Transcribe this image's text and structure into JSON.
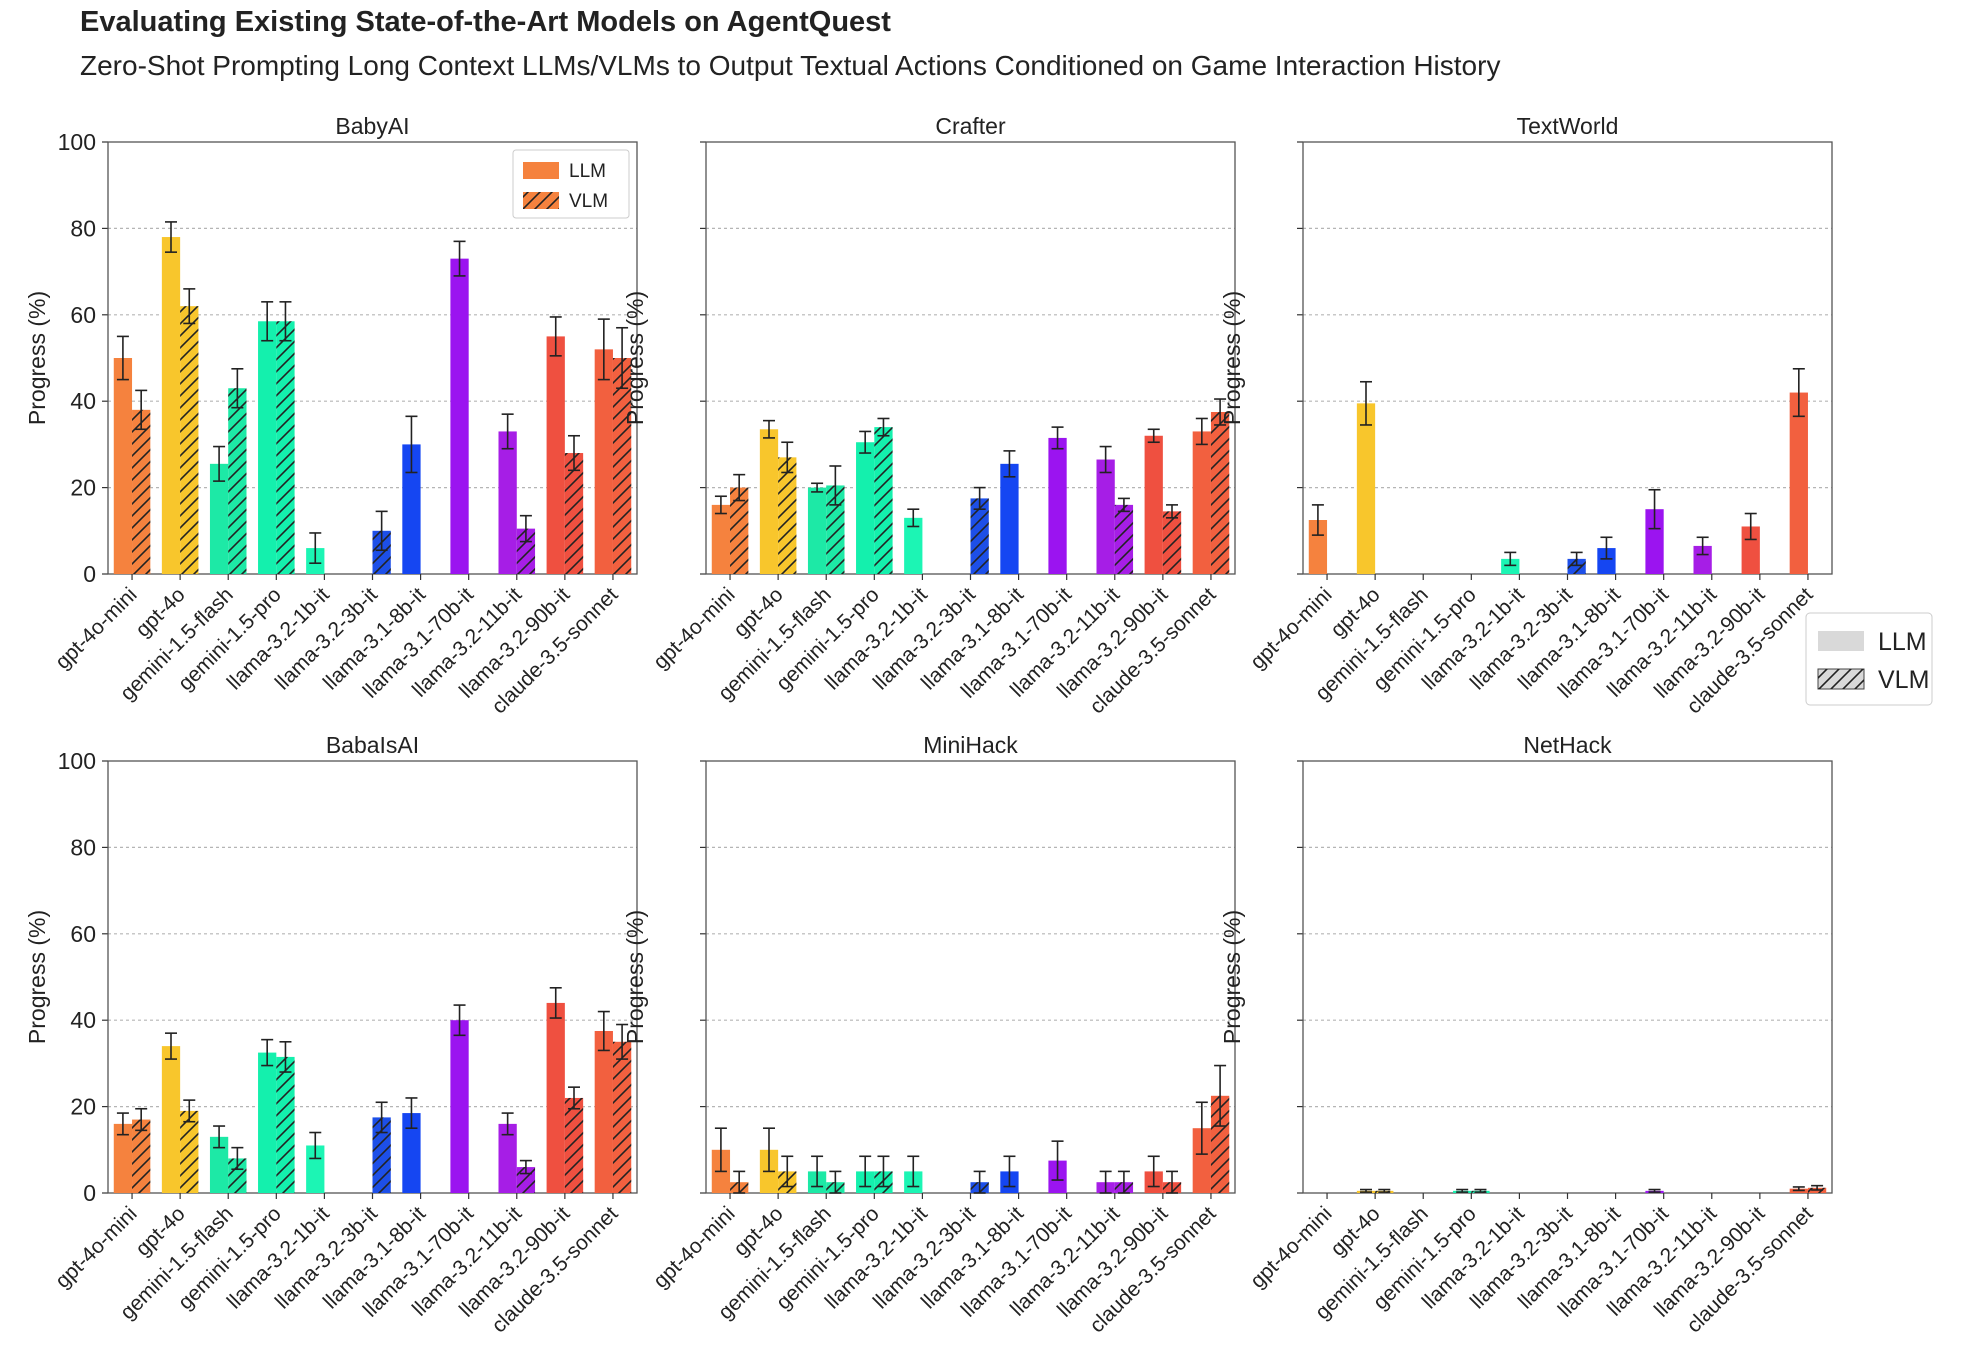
{
  "title": "Evaluating Existing State-of-the-Art Models on AgentQuest",
  "subtitle": "Zero-Shot Prompting Long Context LLMs/VLMs to Output Textual Actions Conditioned on Game Interaction History",
  "ylabel": "Progress (%)",
  "legend_inner": [
    "LLM",
    "VLM"
  ],
  "legend_outer": [
    "LLM",
    "VLM"
  ],
  "colors": {
    "gpt-4o-mini": "#f5823e",
    "gpt-4o": "#f8c62c",
    "gemini-1.5-flash": "#1de9a6",
    "gemini-1.5-pro": "#14f0ad",
    "llama-3.2-1b-it": "#1cf5b4",
    "llama-3.2-3b-it": "#1d4fe8",
    "llama-3.1-8b-it": "#1546f2",
    "llama-3.1-70b-it": "#9b14f0",
    "llama-3.2-11b-it": "#a61ee6",
    "llama-3.2-90b-it": "#ef5040",
    "claude-3.5-sonnet": "#f2603f",
    "legend_llm": "#f5823e",
    "legend_outer_fill": "#d9d9d9"
  },
  "chart_data": [
    {
      "title": "BabyAI",
      "type": "bar",
      "categories": [
        "gpt-4o-mini",
        "gpt-4o",
        "gemini-1.5-flash",
        "gemini-1.5-pro",
        "llama-3.2-1b-it",
        "llama-3.2-3b-it",
        "llama-3.1-8b-it",
        "llama-3.1-70b-it",
        "llama-3.2-11b-it",
        "llama-3.2-90b-it",
        "claude-3.5-sonnet"
      ],
      "ylim": [
        0,
        100
      ],
      "yticks": [
        0,
        20,
        40,
        60,
        80,
        100
      ],
      "ylabel": "Progress (%)",
      "series": [
        {
          "name": "LLM",
          "values": [
            50,
            78,
            25.5,
            58.5,
            6,
            null,
            30,
            73,
            33,
            55,
            52
          ],
          "errors": [
            5,
            3.5,
            4,
            4.5,
            3.5,
            null,
            6.5,
            4,
            4,
            4.5,
            7
          ]
        },
        {
          "name": "VLM",
          "values": [
            38,
            62,
            43,
            58.5,
            null,
            10,
            null,
            null,
            10.5,
            28,
            50
          ],
          "errors": [
            4.5,
            4,
            4.5,
            4.5,
            null,
            4.5,
            null,
            null,
            3,
            4,
            7
          ]
        }
      ]
    },
    {
      "title": "Crafter",
      "type": "bar",
      "categories": [
        "gpt-4o-mini",
        "gpt-4o",
        "gemini-1.5-flash",
        "gemini-1.5-pro",
        "llama-3.2-1b-it",
        "llama-3.2-3b-it",
        "llama-3.1-8b-it",
        "llama-3.1-70b-it",
        "llama-3.2-11b-it",
        "llama-3.2-90b-it",
        "claude-3.5-sonnet"
      ],
      "ylim": [
        0,
        100
      ],
      "yticks": [
        0,
        20,
        40,
        60,
        80,
        100
      ],
      "ylabel": "Progress (%)",
      "series": [
        {
          "name": "LLM",
          "values": [
            16,
            33.5,
            20,
            30.5,
            13,
            null,
            25.5,
            31.5,
            26.5,
            32,
            33
          ],
          "errors": [
            2,
            2,
            1,
            2.5,
            2,
            null,
            3,
            2.5,
            3,
            1.5,
            3
          ]
        },
        {
          "name": "VLM",
          "values": [
            20,
            27,
            20.5,
            34,
            null,
            17.5,
            null,
            null,
            16,
            14.5,
            37.5
          ],
          "errors": [
            3,
            3.5,
            4.5,
            2,
            null,
            2.5,
            null,
            null,
            1.5,
            1.5,
            3
          ]
        }
      ]
    },
    {
      "title": "TextWorld",
      "type": "bar",
      "categories": [
        "gpt-4o-mini",
        "gpt-4o",
        "gemini-1.5-flash",
        "gemini-1.5-pro",
        "llama-3.2-1b-it",
        "llama-3.2-3b-it",
        "llama-3.1-8b-it",
        "llama-3.1-70b-it",
        "llama-3.2-11b-it",
        "llama-3.2-90b-it",
        "claude-3.5-sonnet"
      ],
      "ylim": [
        0,
        100
      ],
      "yticks": [
        0,
        20,
        40,
        60,
        80,
        100
      ],
      "ylabel": "Progress (%)",
      "series": [
        {
          "name": "LLM",
          "values": [
            12.5,
            39.5,
            0,
            0,
            3.5,
            null,
            6,
            15,
            6.5,
            11,
            42
          ],
          "errors": [
            3.5,
            5,
            0,
            0,
            1.5,
            null,
            2.5,
            4.5,
            2,
            3,
            5.5
          ]
        },
        {
          "name": "VLM",
          "values": [
            0,
            0,
            0,
            0,
            null,
            3.5,
            null,
            null,
            0,
            0,
            0
          ],
          "errors": [
            0,
            0,
            0,
            0,
            null,
            1.5,
            null,
            null,
            0,
            0,
            0
          ]
        }
      ]
    },
    {
      "title": "BabaIsAI",
      "type": "bar",
      "categories": [
        "gpt-4o-mini",
        "gpt-4o",
        "gemini-1.5-flash",
        "gemini-1.5-pro",
        "llama-3.2-1b-it",
        "llama-3.2-3b-it",
        "llama-3.1-8b-it",
        "llama-3.1-70b-it",
        "llama-3.2-11b-it",
        "llama-3.2-90b-it",
        "claude-3.5-sonnet"
      ],
      "ylim": [
        0,
        100
      ],
      "yticks": [
        0,
        20,
        40,
        60,
        80,
        100
      ],
      "ylabel": "Progress (%)",
      "series": [
        {
          "name": "LLM",
          "values": [
            16,
            34,
            13,
            32.5,
            11,
            null,
            18.5,
            40,
            16,
            44,
            37.5
          ],
          "errors": [
            2.5,
            3,
            2.5,
            3,
            3,
            null,
            3.5,
            3.5,
            2.5,
            3.5,
            4.5
          ]
        },
        {
          "name": "VLM",
          "values": [
            17,
            19,
            8,
            31.5,
            null,
            17.5,
            null,
            null,
            6,
            22,
            35
          ],
          "errors": [
            2.5,
            2.5,
            2.5,
            3.5,
            null,
            3.5,
            null,
            null,
            1.5,
            2.5,
            4
          ]
        }
      ]
    },
    {
      "title": "MiniHack",
      "type": "bar",
      "categories": [
        "gpt-4o-mini",
        "gpt-4o",
        "gemini-1.5-flash",
        "gemini-1.5-pro",
        "llama-3.2-1b-it",
        "llama-3.2-3b-it",
        "llama-3.1-8b-it",
        "llama-3.1-70b-it",
        "llama-3.2-11b-it",
        "llama-3.2-90b-it",
        "claude-3.5-sonnet"
      ],
      "ylim": [
        0,
        100
      ],
      "yticks": [
        0,
        20,
        40,
        60,
        80,
        100
      ],
      "ylabel": "Progress (%)",
      "series": [
        {
          "name": "LLM",
          "values": [
            10,
            10,
            5,
            5,
            5,
            null,
            5,
            7.5,
            2.5,
            5,
            15
          ],
          "errors": [
            5,
            5,
            3.5,
            3.5,
            3.5,
            null,
            3.5,
            4.5,
            2.5,
            3.5,
            6
          ]
        },
        {
          "name": "VLM",
          "values": [
            2.5,
            5,
            2.5,
            5,
            null,
            2.5,
            null,
            null,
            2.5,
            2.5,
            22.5
          ],
          "errors": [
            2.5,
            3.5,
            2.5,
            3.5,
            null,
            2.5,
            null,
            null,
            2.5,
            2.5,
            7
          ]
        }
      ]
    },
    {
      "title": "NetHack",
      "type": "bar",
      "categories": [
        "gpt-4o-mini",
        "gpt-4o",
        "gemini-1.5-flash",
        "gemini-1.5-pro",
        "llama-3.2-1b-it",
        "llama-3.2-3b-it",
        "llama-3.1-8b-it",
        "llama-3.1-70b-it",
        "llama-3.2-11b-it",
        "llama-3.2-90b-it",
        "claude-3.5-sonnet"
      ],
      "ylim": [
        0,
        100
      ],
      "yticks": [
        0,
        20,
        40,
        60,
        80,
        100
      ],
      "ylabel": "Progress (%)",
      "series": [
        {
          "name": "LLM",
          "values": [
            0,
            0.5,
            0,
            0.5,
            0,
            null,
            0,
            0.5,
            0,
            0,
            1
          ],
          "errors": [
            0,
            0.3,
            0,
            0.3,
            0,
            null,
            0,
            0.3,
            0,
            0,
            0.4
          ]
        },
        {
          "name": "VLM",
          "values": [
            0,
            0.5,
            0,
            0.5,
            null,
            0,
            null,
            null,
            0,
            0,
            1.2
          ],
          "errors": [
            0,
            0.3,
            0,
            0.3,
            null,
            0,
            null,
            null,
            0,
            0,
            0.5
          ]
        }
      ]
    }
  ]
}
